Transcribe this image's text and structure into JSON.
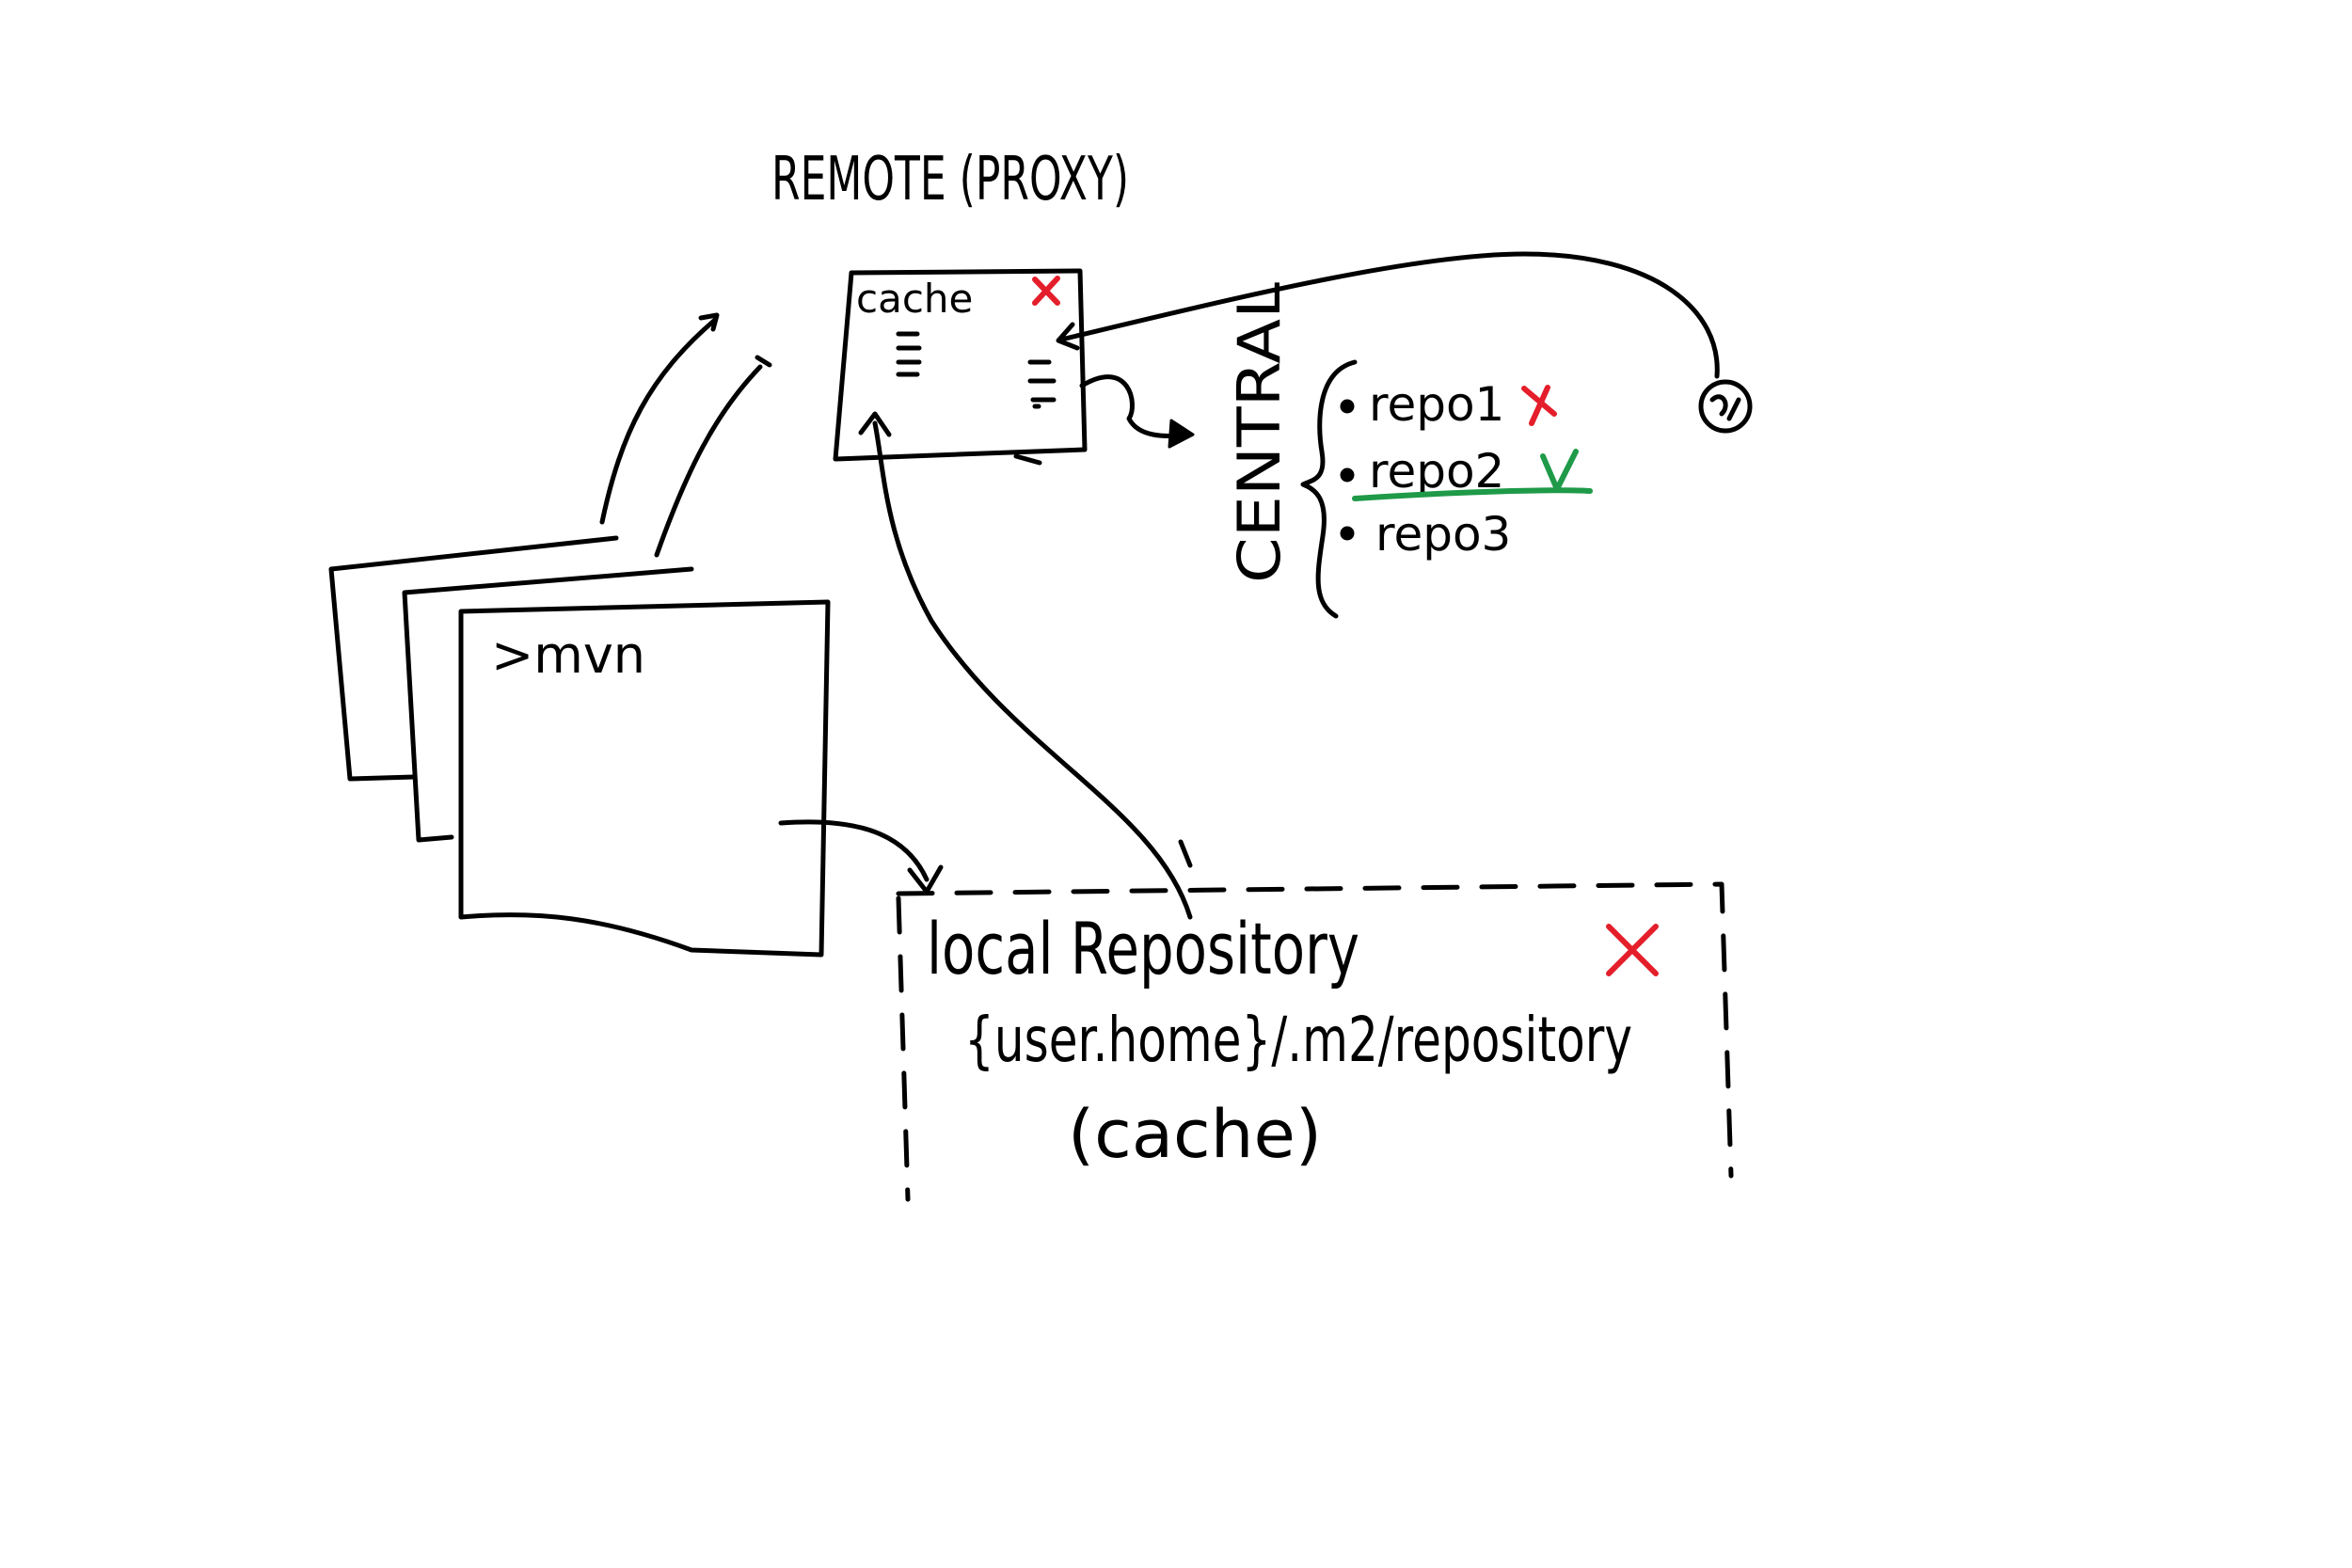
{
  "diagram": {
    "remote_title": "REMOTE (PROXY)",
    "remote_cache_label": "cache",
    "central_label": "CENTRAL",
    "repos": [
      {
        "label": "repo1",
        "status": "failed"
      },
      {
        "label": "repo2",
        "status": "ok"
      },
      {
        "label": "repo3",
        "status": "none"
      }
    ],
    "terminal_prompt": ">mvn",
    "local_repo": {
      "title": "local Repository",
      "path": "{user.home}/.m2/repository",
      "note": "(cache)"
    },
    "colors": {
      "failed": "#e41e2b",
      "ok": "#1f9a48",
      "ink": "#000000"
    }
  }
}
